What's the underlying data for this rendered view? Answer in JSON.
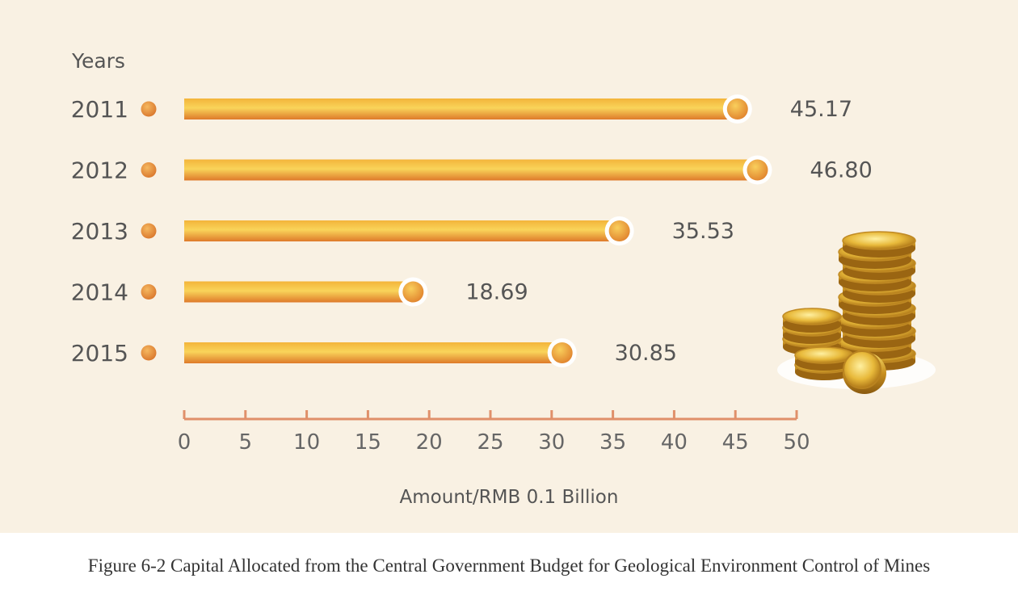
{
  "chart_data": {
    "type": "bar",
    "orientation": "horizontal",
    "categories": [
      "2011",
      "2012",
      "2013",
      "2014",
      "2015"
    ],
    "values": [
      45.17,
      46.8,
      35.53,
      18.69,
      30.85
    ],
    "value_labels": [
      "45.17",
      "46.80",
      "35.53",
      "18.69",
      "30.85"
    ],
    "ylabel": "Years",
    "xlabel": "Amount/RMB 0.1 Billion",
    "xlim": [
      0,
      50
    ],
    "xticks": [
      0,
      5,
      10,
      15,
      20,
      25,
      30,
      35,
      40,
      45,
      50
    ],
    "grid": false,
    "colors": {
      "bar_top": "#f6c94a",
      "bar_bottom": "#e07b2a",
      "marker": "#e58b3a",
      "axis": "#e0906a",
      "background": "#f9f1e3"
    }
  },
  "caption": "Figure 6-2 Capital Allocated from the Central Government Budget for Geological Environment Control of Mines",
  "decoration": {
    "icon": "gold-coins-stack-icon"
  }
}
